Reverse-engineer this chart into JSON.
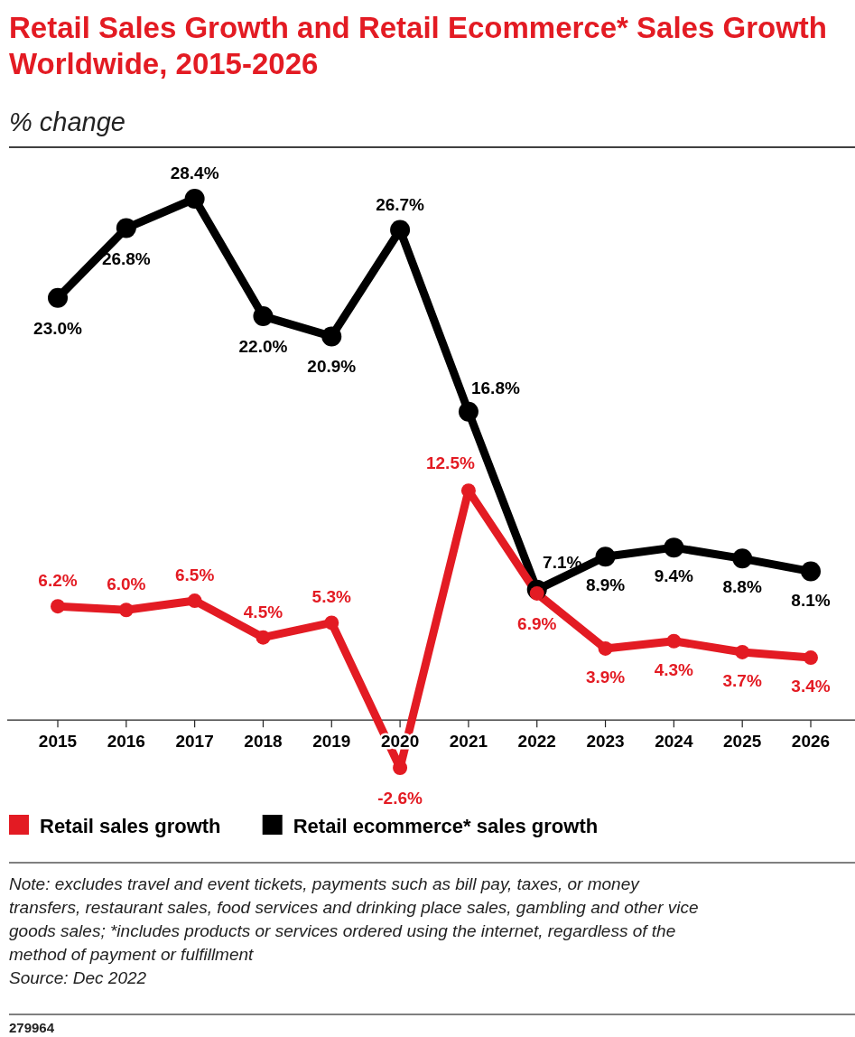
{
  "chart_data": {
    "type": "line",
    "title": "Retail Sales Growth and Retail Ecommerce* Sales Growth Worldwide, 2015-2026",
    "subtitle": "% change",
    "categories": [
      "2015",
      "2016",
      "2017",
      "2018",
      "2019",
      "2020",
      "2021",
      "2022",
      "2023",
      "2024",
      "2025",
      "2026"
    ],
    "series": [
      {
        "name": "Retail sales growth",
        "color": "#e31b23",
        "values": [
          6.2,
          6.0,
          6.5,
          4.5,
          5.3,
          -2.6,
          12.5,
          6.9,
          3.9,
          4.3,
          3.7,
          3.4
        ],
        "value_labels": [
          "6.2%",
          "6.0%",
          "6.5%",
          "4.5%",
          "5.3%",
          "-2.6%",
          "12.5%",
          "6.9%",
          "3.9%",
          "4.3%",
          "3.7%",
          "3.4%"
        ]
      },
      {
        "name": "Retail ecommerce* sales growth",
        "color": "#000000",
        "values": [
          23.0,
          26.8,
          28.4,
          22.0,
          20.9,
          26.7,
          16.8,
          7.1,
          8.9,
          9.4,
          8.8,
          8.1
        ],
        "value_labels": [
          "23.0%",
          "26.8%",
          "28.4%",
          "22.0%",
          "20.9%",
          "26.7%",
          "16.8%",
          "7.1%",
          "8.9%",
          "9.4%",
          "8.8%",
          "8.1%"
        ]
      }
    ],
    "legend": "bottom left",
    "marker": "circle",
    "annotations": [
      "Note: excludes travel and event tickets, payments such as bill pay, taxes, or money transfers, restaurant sales, food services and drinking place sales, gambling and other vice goods sales; *includes products or services ordered using the internet, regardless of the method of payment or fulfillment",
      "Source: Dec 2022",
      "279964"
    ]
  }
}
